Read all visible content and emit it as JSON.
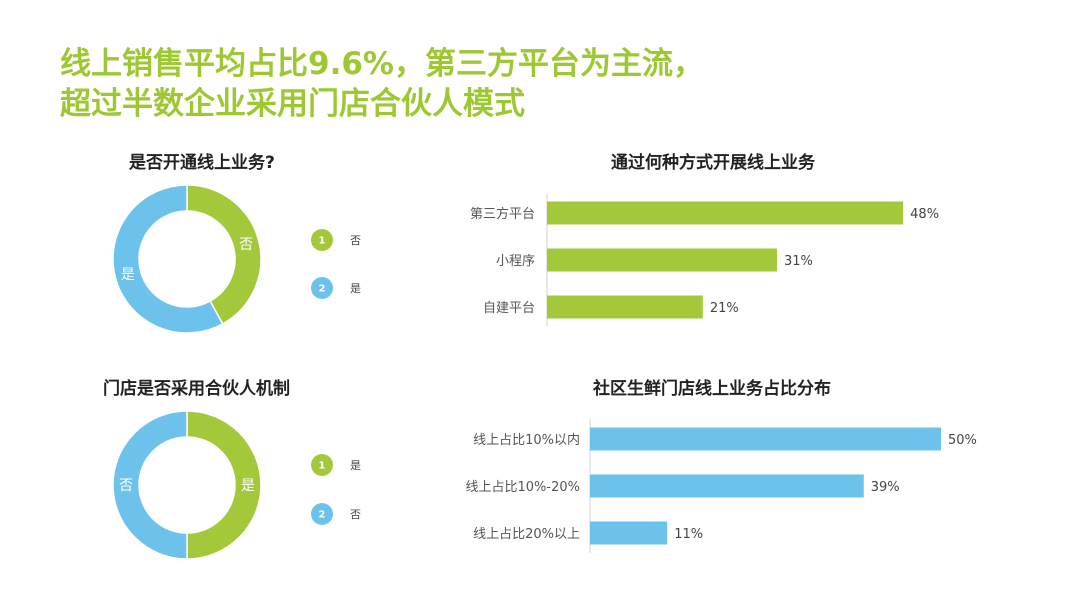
{
  "title": {
    "line1": "线上销售平均占比9.6%，第三方平台为主流，",
    "line2": "超过半数企业采用门店合伙人模式"
  },
  "colors": {
    "green": "#a3c93b",
    "blue": "#6dc2eb",
    "title": "#9ec832"
  },
  "chart_data": [
    {
      "type": "pie",
      "variant": "donut",
      "title": "是否开通线上业务?",
      "categories": [
        "否",
        "是"
      ],
      "values": [
        42,
        58
      ],
      "colors": [
        "#a3c93b",
        "#6dc2eb"
      ],
      "legend": [
        {
          "num": "1",
          "label": "否"
        },
        {
          "num": "2",
          "label": "是"
        }
      ]
    },
    {
      "type": "bar",
      "orientation": "horizontal",
      "title": "通过何种方式开展线上业务",
      "categories": [
        "第三方平台",
        "小程序",
        "自建平台"
      ],
      "values": [
        48,
        31,
        21
      ],
      "value_labels": [
        "48%",
        "31%",
        "21%"
      ],
      "color": "#a3c93b",
      "xlim": [
        0,
        50
      ]
    },
    {
      "type": "pie",
      "variant": "donut",
      "title": "门店是否采用合伙人机制",
      "categories": [
        "是",
        "否"
      ],
      "values": [
        50,
        50
      ],
      "colors": [
        "#a3c93b",
        "#6dc2eb"
      ],
      "legend": [
        {
          "num": "1",
          "label": "是"
        },
        {
          "num": "2",
          "label": "否"
        }
      ]
    },
    {
      "type": "bar",
      "orientation": "horizontal",
      "title": "社区生鲜门店线上业务占比分布",
      "categories": [
        "线上占比10%以内",
        "线上占比10%-20%",
        "线上占比20%以上"
      ],
      "values": [
        50,
        39,
        11
      ],
      "value_labels": [
        "50%",
        "39%",
        "11%"
      ],
      "color": "#6dc2eb",
      "xlim": [
        0,
        50
      ]
    }
  ]
}
